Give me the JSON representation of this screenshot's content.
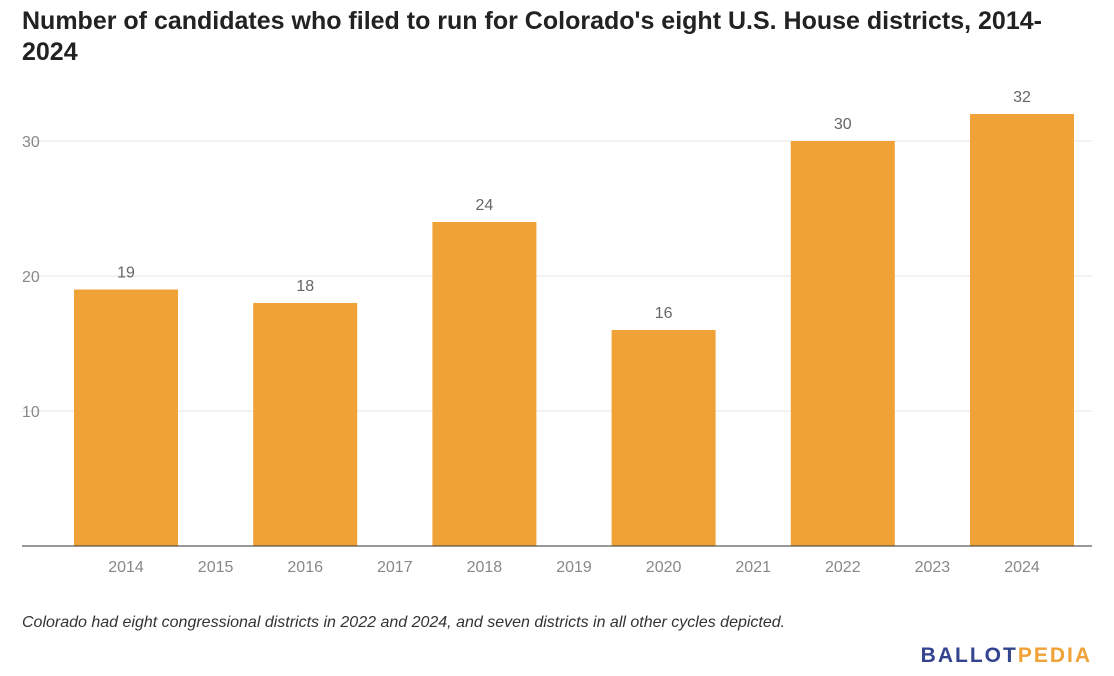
{
  "chart_data": {
    "type": "bar",
    "title": "Number of candidates who filed to run for Colorado's eight U.S. House districts, 2014-2024",
    "categories": [
      "2014",
      "2015",
      "2016",
      "2017",
      "2018",
      "2019",
      "2020",
      "2021",
      "2022",
      "2023",
      "2024"
    ],
    "values": [
      19,
      null,
      18,
      null,
      24,
      null,
      16,
      null,
      30,
      null,
      32
    ],
    "data_labels": [
      "19",
      "",
      "18",
      "",
      "24",
      "",
      "16",
      "",
      "30",
      "",
      "32"
    ],
    "ylim": [
      0,
      32
    ],
    "yticks": [
      10,
      20,
      30
    ],
    "ytick_labels": [
      "10",
      "20",
      "30"
    ],
    "grid": true,
    "bar_color": "#F0A236",
    "xlabel": "",
    "ylabel": ""
  },
  "footnote": "Colorado had eight congressional districts in 2022 and 2024, and seven districts in all other cycles depicted.",
  "brand": {
    "part1": "BALLOT",
    "part2": "PEDIA",
    "color1": "#34448E",
    "color2": "#F0A236"
  }
}
